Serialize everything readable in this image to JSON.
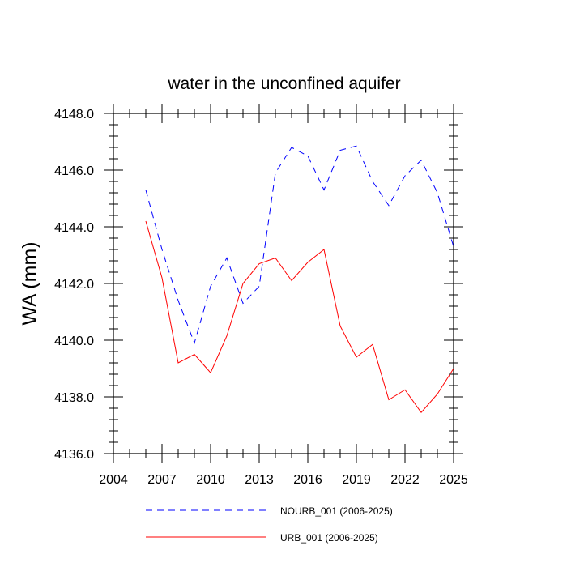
{
  "chart_data": {
    "type": "line",
    "title": "water in the unconfined aquifer",
    "xlabel": "",
    "ylabel": "WA  (mm)",
    "xlim": [
      2004,
      2025
    ],
    "ylim": [
      4136.0,
      4148.0
    ],
    "x_ticks": [
      2004,
      2007,
      2010,
      2013,
      2016,
      2019,
      2022,
      2025
    ],
    "x_tick_labels": [
      "2004",
      "2007",
      "2010",
      "2013",
      "2016",
      "2019",
      "2022",
      "2025"
    ],
    "y_ticks": [
      4136.0,
      4138.0,
      4140.0,
      4142.0,
      4144.0,
      4146.0,
      4148.0
    ],
    "y_tick_labels": [
      "4136.0",
      "4138.0",
      "4140.0",
      "4142.0",
      "4144.0",
      "4146.0",
      "4148.0"
    ],
    "grid": false,
    "legend_position": "bottom",
    "x": [
      2006,
      2007,
      2008,
      2009,
      2010,
      2011,
      2012,
      2013,
      2014,
      2015,
      2016,
      2017,
      2018,
      2019,
      2020,
      2021,
      2022,
      2023,
      2024,
      2025
    ],
    "series": [
      {
        "name": "NOURB_001 (2006-2025)",
        "color": "#0000ff",
        "style": "dashed",
        "values": [
          4145.3,
          4143.2,
          4141.4,
          4139.9,
          4141.9,
          4142.9,
          4141.3,
          4141.9,
          4145.9,
          4146.8,
          4146.5,
          4145.3,
          4146.7,
          4146.85,
          4145.6,
          4144.75,
          4145.8,
          4146.35,
          4145.2,
          4143.3
        ]
      },
      {
        "name": "URB_001 (2006-2025)",
        "color": "#ff0000",
        "style": "solid",
        "values": [
          4144.2,
          4142.2,
          4139.2,
          4139.5,
          4138.85,
          4140.15,
          4142.0,
          4142.7,
          4142.9,
          4142.1,
          4142.75,
          4143.2,
          4140.5,
          4139.4,
          4139.85,
          4137.9,
          4138.25,
          4137.45,
          4138.1,
          4139.0
        ]
      }
    ]
  }
}
